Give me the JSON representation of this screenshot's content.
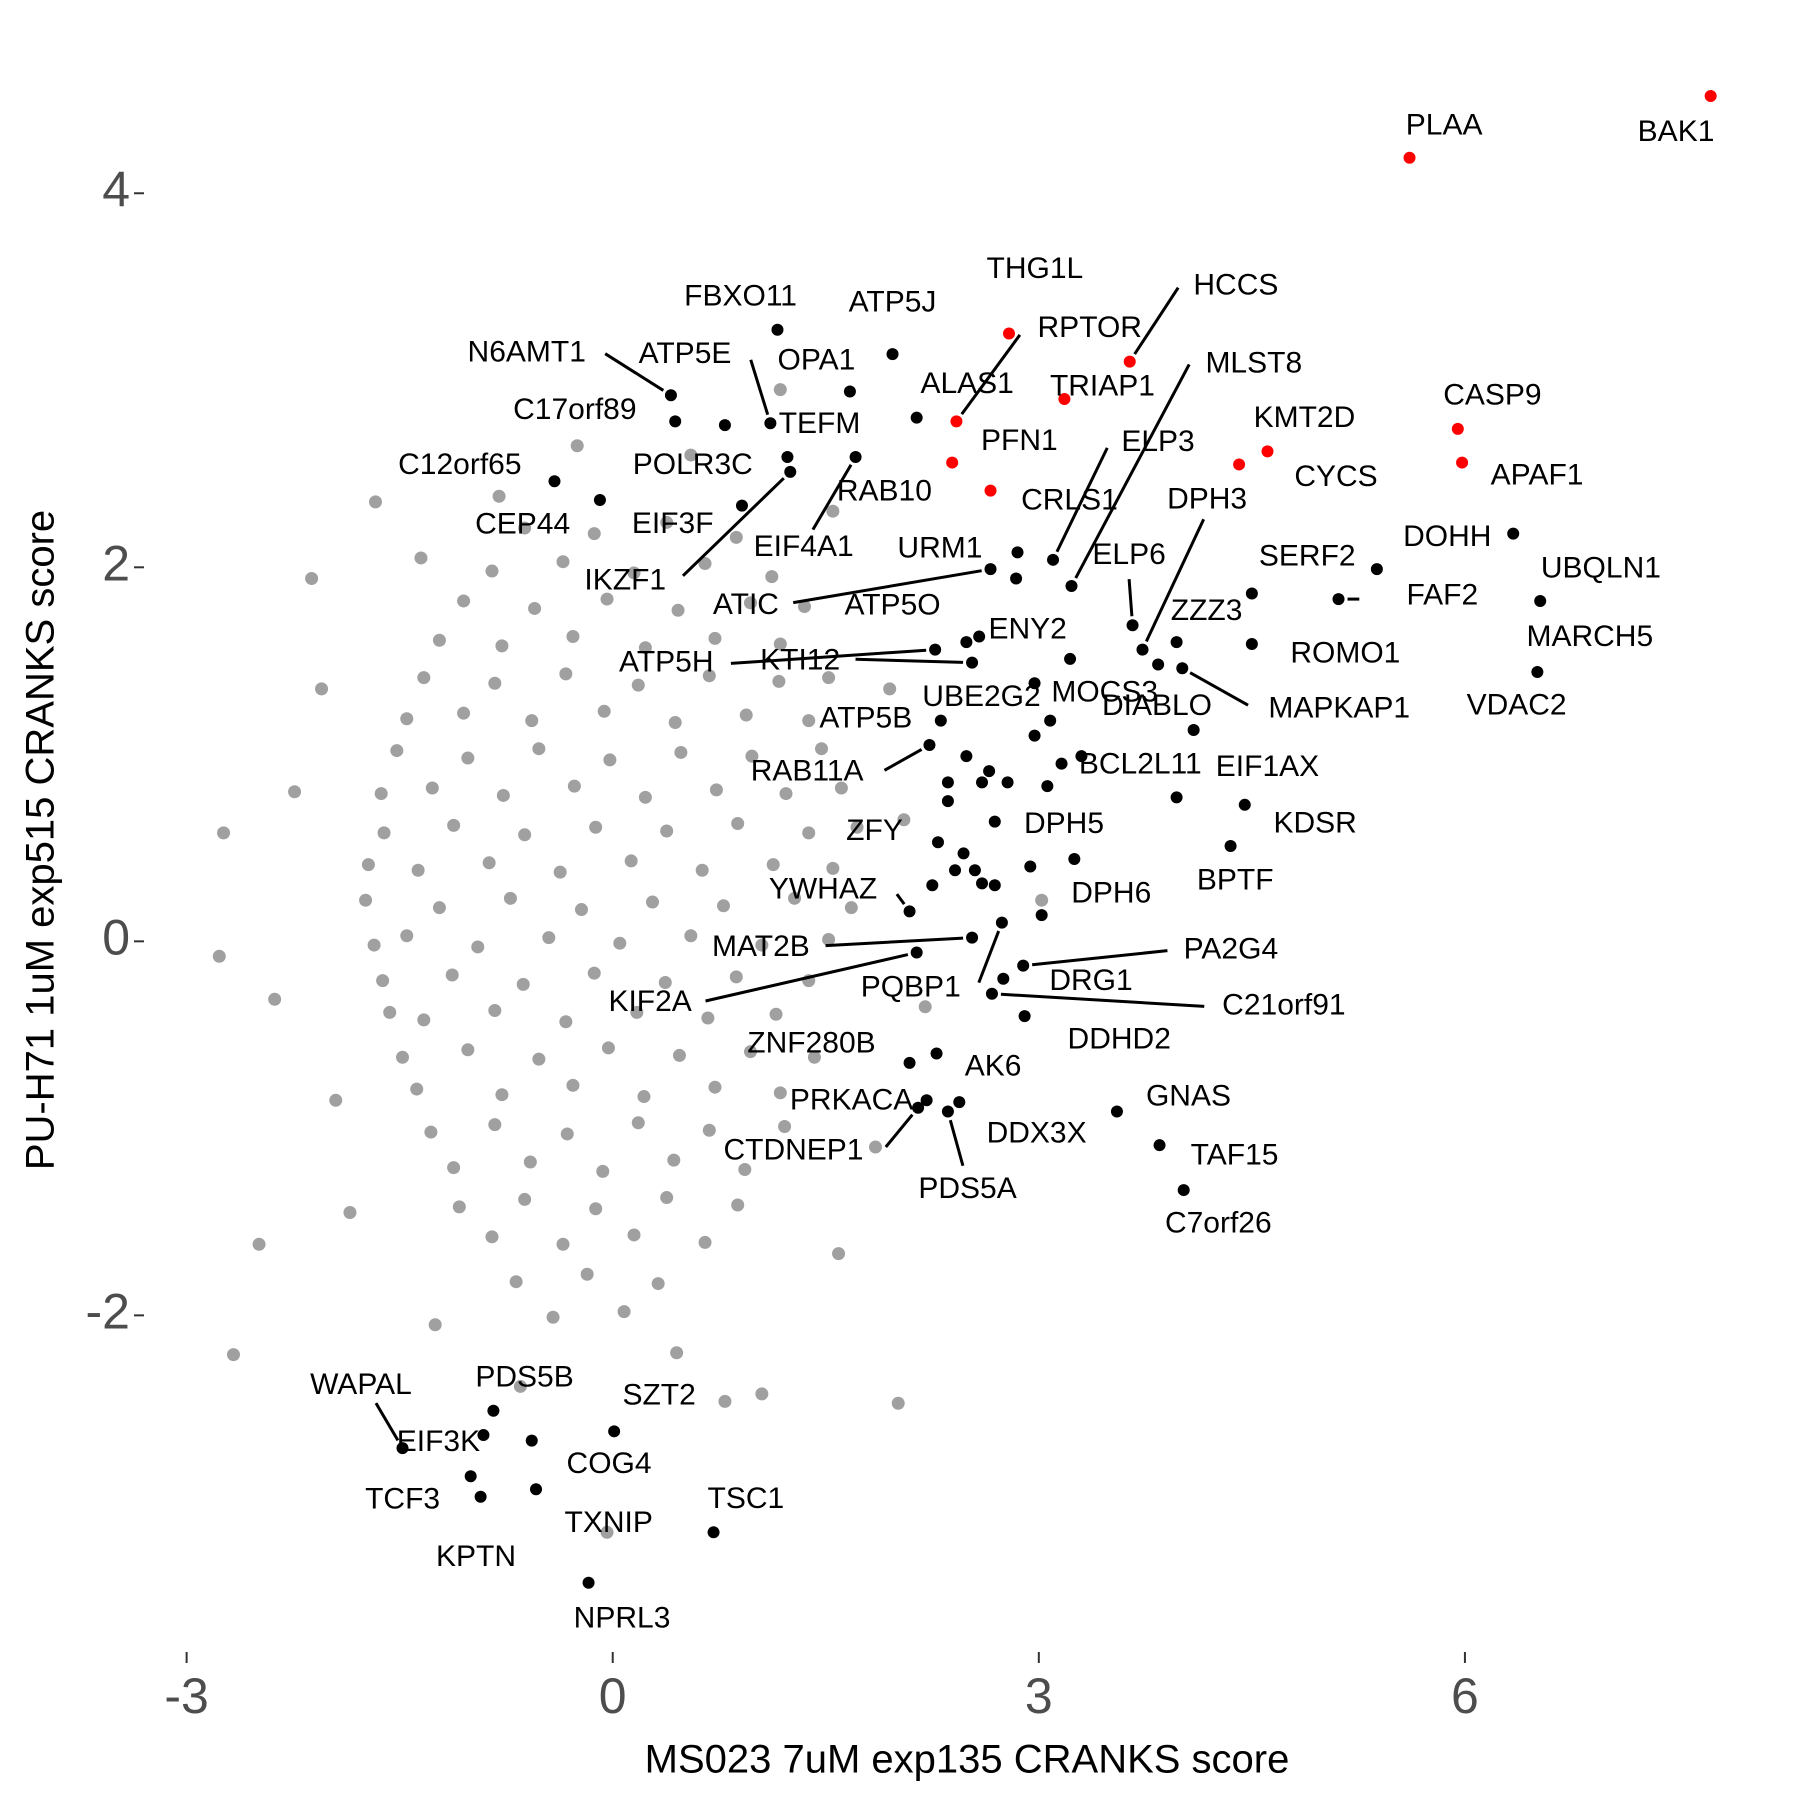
{
  "chart_data": {
    "type": "scatter",
    "xlabel": "MS023 7uM exp135 CRANKS score",
    "ylabel": "PU-H71 1uM exp515 CRANKS score",
    "xlim": [
      -3.3,
      8.0
    ],
    "ylim": [
      -3.8,
      4.75
    ],
    "xticks": [
      -3,
      0,
      3,
      6
    ],
    "yticks": [
      -2,
      0,
      2,
      4
    ],
    "grid": false,
    "series": [
      {
        "color": "#a0a0a0",
        "x": [
          -0.62,
          -0.13,
          0.38,
          0.87,
          -0.85,
          -0.35,
          0.15,
          0.65,
          1.12,
          -1.05,
          -0.55,
          -0.04,
          0.46,
          0.97,
          1.35,
          -1.22,
          -0.78,
          -0.28,
          0.23,
          0.72,
          1.18,
          -1.33,
          -0.83,
          -0.33,
          0.18,
          0.68,
          1.17,
          1.52,
          -1.45,
          -1.05,
          -0.57,
          -0.06,
          0.44,
          0.94,
          1.38,
          -1.52,
          -1.02,
          -0.52,
          -0.02,
          0.48,
          0.98,
          1.47,
          -1.63,
          -1.27,
          -0.77,
          -0.27,
          0.23,
          0.73,
          1.22,
          1.61,
          -1.61,
          -1.12,
          -0.62,
          -0.12,
          0.38,
          0.88,
          1.38,
          1.72,
          -1.72,
          -1.37,
          -0.87,
          -0.37,
          0.13,
          0.63,
          1.13,
          1.55,
          -1.74,
          -1.22,
          -0.72,
          -0.22,
          0.28,
          0.78,
          1.28,
          1.68,
          -1.68,
          -1.45,
          -0.95,
          -0.45,
          0.05,
          0.55,
          1.05,
          1.52,
          -1.62,
          -1.13,
          -0.63,
          -0.13,
          0.37,
          0.87,
          1.38,
          -1.57,
          -1.33,
          -0.83,
          -0.33,
          0.17,
          0.67,
          1.15,
          -1.48,
          -1.02,
          -0.52,
          -0.03,
          0.47,
          0.97,
          1.42,
          -1.38,
          -0.78,
          -0.28,
          0.22,
          0.72,
          1.18,
          -1.28,
          -0.83,
          -0.32,
          0.18,
          0.68,
          1.21,
          -1.12,
          -0.58,
          -0.07,
          0.43,
          0.93,
          -1.08,
          -0.62,
          -0.12,
          0.38,
          0.88,
          -0.85,
          -0.35,
          0.15,
          0.65,
          -0.68,
          -0.18,
          0.32,
          -0.42,
          0.08,
          -2.74,
          -2.77,
          -2.67,
          -2.12,
          -1.67,
          -0.8,
          -0.04,
          2.01,
          1.05,
          0.79,
          1.59,
          3.02,
          1.18,
          -2.49,
          -2.24,
          -2.38,
          -2.05,
          -1.95,
          -1.85,
          -1.25,
          -0.65,
          0.45,
          1.85,
          2.05,
          1.95,
          1.55,
          0.55,
          -0.25,
          -1.35,
          2.2
        ],
        "values": [
          2.21,
          2.18,
          2.24,
          2.16,
          1.98,
          2.03,
          1.97,
          2.02,
          1.95,
          1.82,
          1.78,
          1.83,
          1.77,
          1.81,
          1.79,
          1.61,
          1.58,
          1.63,
          1.57,
          1.62,
          1.59,
          1.41,
          1.38,
          1.43,
          1.37,
          1.42,
          1.39,
          1.41,
          1.19,
          1.22,
          1.18,
          1.23,
          1.17,
          1.21,
          1.18,
          1.02,
          0.98,
          1.03,
          0.97,
          1.01,
          0.99,
          1.03,
          0.79,
          0.82,
          0.78,
          0.83,
          0.77,
          0.81,
          0.79,
          0.82,
          0.58,
          0.62,
          0.57,
          0.61,
          0.59,
          0.63,
          0.58,
          0.61,
          0.41,
          0.38,
          0.42,
          0.37,
          0.43,
          0.38,
          0.41,
          0.39,
          0.22,
          0.18,
          0.23,
          0.17,
          0.21,
          0.19,
          0.23,
          0.18,
          -0.02,
          0.03,
          -0.03,
          0.02,
          -0.01,
          0.03,
          -0.02,
          0.01,
          -0.21,
          -0.18,
          -0.23,
          -0.17,
          -0.22,
          -0.19,
          -0.21,
          -0.38,
          -0.42,
          -0.37,
          -0.43,
          -0.38,
          -0.41,
          -0.39,
          -0.62,
          -0.58,
          -0.63,
          -0.57,
          -0.61,
          -0.59,
          -0.62,
          -0.79,
          -0.82,
          -0.77,
          -0.83,
          -0.78,
          -0.81,
          -1.02,
          -0.98,
          -1.03,
          -0.97,
          -1.01,
          -0.99,
          -1.21,
          -1.18,
          -1.23,
          -1.17,
          -1.22,
          -1.42,
          -1.38,
          -1.43,
          -1.37,
          -1.41,
          -1.58,
          -1.62,
          -1.57,
          -1.61,
          -1.82,
          -1.78,
          -1.83,
          -2.01,
          -1.98,
          0.58,
          -0.08,
          -2.21,
          1.94,
          2.35,
          2.38,
          -3.16,
          -2.47,
          -2.42,
          -2.46,
          -1.67,
          0.22,
          2.95,
          -1.62,
          0.8,
          -0.31,
          1.35,
          -0.85,
          -1.45,
          -2.05,
          -2.38,
          -2.2,
          -1.1,
          0.65,
          1.35,
          2.3,
          2.6,
          2.65,
          2.05,
          -0.35
        ]
      },
      {
        "color": "#000000",
        "x": [
          2.97,
          3.08,
          2.49,
          2.65,
          2.36,
          2.36,
          2.6,
          2.78,
          3.06,
          3.16,
          3.97,
          2.47,
          2.55,
          2.41,
          2.6,
          2.69,
          2.25,
          2.94,
          3.02
        ],
        "values": [
          1.1,
          1.18,
          0.99,
          0.91,
          0.85,
          0.75,
          0.85,
          0.85,
          0.83,
          0.95,
          0.77,
          0.47,
          0.38,
          0.38,
          0.31,
          0.3,
          0.3,
          0.4,
          0.14
        ]
      },
      {
        "color": "#000000",
        "labels": [
          "FBXO11",
          "ATP5J",
          "N6AMT1",
          "ATP5E",
          "OPA1",
          "C17orf89",
          "TEFM",
          "POLR3C",
          "IKZF1",
          "C12orf65",
          "CEP44",
          "EIF3F",
          "EIF4A1",
          "RAB10",
          "ATIC",
          "CRLS1",
          "URM1",
          "ELP3",
          "MLST8",
          "DPH3",
          "ATP5O",
          "ENY2",
          "ATP5H",
          "KTI12",
          "UBE2G2",
          "MOCS3",
          "DIABLO",
          "MAPKAP1",
          "RAB11A",
          "ATP5B",
          "ELP6",
          "ZZZ3",
          "SERF2",
          "DOHH",
          "UBQLN1",
          "FAF2",
          "ROMO1",
          "MARCH5",
          "VDAC2",
          "BCL2L11",
          "EIF1AX",
          "KDSR",
          "BPTF",
          "DPH5",
          "DPH6",
          "ZFY",
          "YWHAZ",
          "MAT2B",
          "KIF2A",
          "PA2G4",
          "PQBP1",
          "DRG1",
          "C21orf91",
          "DDHD2",
          "ZNF280B",
          "AK6",
          "PRKACA",
          "GNAS",
          "DDX3X",
          "TAF15",
          "CTDNEP1",
          "PDS5A",
          "C7orf26",
          "WAPAL",
          "PDS5B",
          "SZT2",
          "EIF3K",
          "COG4",
          "TCF3",
          "TXNIP",
          "TSC1",
          "KPTN",
          "NPRL3"
        ],
        "x": [
          1.16,
          1.97,
          0.41,
          1.11,
          1.67,
          0.44,
          0.79,
          1.23,
          1.25,
          -0.41,
          -0.09,
          0.91,
          1.71,
          2.14,
          2.66,
          2.85,
          2.84,
          3.1,
          3.23,
          3.73,
          2.49,
          2.58,
          2.27,
          2.53,
          2.97,
          3.22,
          3.84,
          4.01,
          2.23,
          2.31,
          3.66,
          3.97,
          4.5,
          5.38,
          6.34,
          5.11,
          4.5,
          6.53,
          6.51,
          3.3,
          4.09,
          4.45,
          4.35,
          2.69,
          3.25,
          2.29,
          2.09,
          2.53,
          2.14,
          2.89,
          2.74,
          2.75,
          2.67,
          2.9,
          2.09,
          2.28,
          2.21,
          3.55,
          2.44,
          3.85,
          2.15,
          2.36,
          4.02,
          -1.48,
          -0.84,
          0.01,
          -0.91,
          -0.57,
          -1.0,
          -0.54,
          0.71,
          -0.93,
          -0.17
        ],
        "values": [
          3.27,
          3.14,
          2.92,
          2.77,
          2.94,
          2.78,
          2.76,
          2.59,
          2.51,
          2.46,
          2.36,
          2.33,
          2.59,
          2.8,
          1.99,
          2.08,
          1.94,
          2.04,
          1.9,
          1.56,
          1.6,
          1.63,
          1.56,
          1.49,
          1.38,
          1.51,
          1.48,
          1.46,
          1.05,
          1.18,
          1.69,
          1.6,
          1.86,
          1.99,
          2.18,
          1.83,
          1.59,
          1.82,
          1.44,
          0.99,
          1.13,
          0.73,
          0.51,
          0.64,
          0.44,
          0.53,
          0.16,
          0.02,
          -0.06,
          -0.13,
          0.1,
          -0.2,
          -0.28,
          -0.4,
          -0.65,
          -0.6,
          -0.85,
          -0.91,
          -0.86,
          -1.09,
          -0.89,
          -0.91,
          -1.33,
          -2.71,
          -2.51,
          -2.62,
          -2.64,
          -2.67,
          -2.86,
          -2.93,
          -3.16,
          -2.97,
          -3.43
        ]
      },
      {
        "color": "#ff0000",
        "labels": [
          "BAK1",
          "PLAA",
          "RPTOR",
          "HCCS",
          "TRIAP1",
          "THG1L",
          "ALAS1",
          "PFN1",
          "CASP9",
          "APAF1",
          "KMT2D",
          "CYCS"
        ],
        "x": [
          7.73,
          5.61,
          2.79,
          3.64,
          3.18,
          2.42,
          2.39,
          2.66,
          5.95,
          5.98,
          4.61,
          4.41
        ],
        "values": [
          4.52,
          4.19,
          3.25,
          3.1,
          2.9,
          2.78,
          2.56,
          2.41,
          2.74,
          2.56,
          2.62,
          2.55
        ]
      }
    ]
  }
}
